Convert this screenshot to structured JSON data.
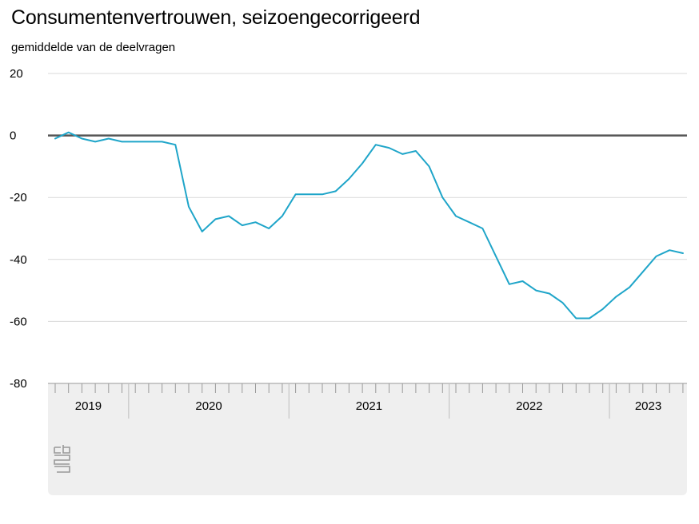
{
  "title": "Consumentenvertrouwen, seizoengecorrigeerd",
  "subtitle": "gemiddelde van de deelvragen",
  "colors": {
    "series": "#1fa5c9",
    "panel": "#efefef",
    "zero_line": "#555555",
    "logo": "#999999"
  },
  "logo": {
    "name": "cbs-logo",
    "text": "cbs"
  },
  "chart_data": {
    "type": "line",
    "title": "Consumentenvertrouwen, seizoengecorrigeerd",
    "subtitle": "gemiddelde van de deelvragen",
    "xlabel": "",
    "ylabel": "",
    "ylim": [
      -80,
      20
    ],
    "yticks": [
      20,
      0,
      -20,
      -40,
      -60,
      -80
    ],
    "grid": true,
    "x_years": [
      "2019",
      "2020",
      "2021",
      "2022",
      "2023"
    ],
    "x": [
      "2019-07",
      "2019-08",
      "2019-09",
      "2019-10",
      "2019-11",
      "2019-12",
      "2020-01",
      "2020-02",
      "2020-03",
      "2020-04",
      "2020-05",
      "2020-06",
      "2020-07",
      "2020-08",
      "2020-09",
      "2020-10",
      "2020-11",
      "2020-12",
      "2021-01",
      "2021-02",
      "2021-03",
      "2021-04",
      "2021-05",
      "2021-06",
      "2021-07",
      "2021-08",
      "2021-09",
      "2021-10",
      "2021-11",
      "2021-12",
      "2022-01",
      "2022-02",
      "2022-03",
      "2022-04",
      "2022-05",
      "2022-06",
      "2022-07",
      "2022-08",
      "2022-09",
      "2022-10",
      "2022-11",
      "2022-12",
      "2023-01",
      "2023-02",
      "2023-03",
      "2023-04",
      "2023-05",
      "2023-06"
    ],
    "series": [
      {
        "values": [
          -1,
          1,
          -1,
          -2,
          -1,
          -2,
          -2,
          -2,
          -2,
          -3,
          -23,
          -31,
          -27,
          -26,
          -29,
          -28,
          -30,
          -26,
          -19,
          -19,
          -19,
          -18,
          -14,
          -9,
          -3,
          -4,
          -6,
          -5,
          -10,
          -20,
          -26,
          -28,
          -30,
          -39,
          -48,
          -47,
          -50,
          -51,
          -54,
          -59,
          -59,
          -56,
          -52,
          -49,
          -44,
          -39,
          -37,
          -38
        ]
      }
    ]
  }
}
